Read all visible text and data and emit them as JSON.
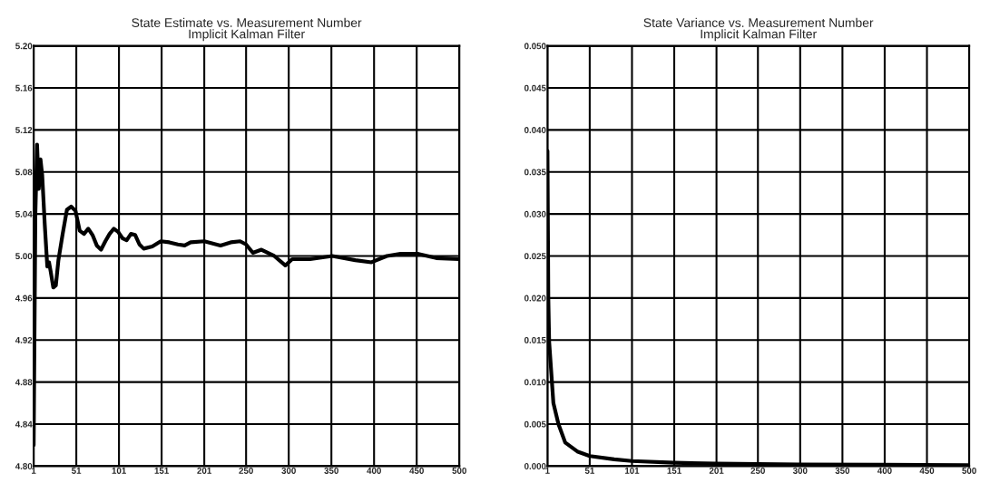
{
  "chart_data": [
    {
      "type": "line",
      "title": "State Estimate vs. Measurement Number\nImplicit Kalman Filter",
      "grid": true,
      "line_style": "solid",
      "x": [
        1,
        3,
        5,
        7,
        9,
        11,
        14,
        17,
        19,
        21,
        24,
        27,
        30,
        35,
        40,
        45,
        50,
        55,
        60,
        65,
        70,
        75,
        80,
        85,
        90,
        95,
        100,
        105,
        110,
        115,
        120,
        125,
        130,
        140,
        150,
        160,
        170,
        178,
        185,
        201,
        220,
        232,
        243,
        250,
        258,
        268,
        283,
        296,
        304,
        325,
        351,
        378,
        397,
        415,
        431,
        452,
        473,
        500
      ],
      "series": [
        {
          "color": "#000000",
          "values": [
            4.82,
            5.04,
            5.106,
            5.064,
            5.092,
            5.077,
            5.03,
            4.99,
            4.994,
            4.985,
            4.97,
            4.972,
            4.996,
            5.021,
            5.044,
            5.047,
            5.043,
            5.024,
            5.021,
            5.026,
            5.02,
            5.01,
            5.006,
            5.014,
            5.021,
            5.026,
            5.023,
            5.017,
            5.015,
            5.021,
            5.02,
            5.011,
            5.007,
            5.009,
            5.014,
            5.013,
            5.011,
            5.01,
            5.013,
            5.014,
            5.01,
            5.013,
            5.014,
            5.011,
            5.003,
            5.006,
            5.0,
            4.991,
            4.997,
            4.997,
            5.0,
            4.996,
            4.994,
            5.0,
            5.002,
            5.002,
            4.998,
            4.997
          ]
        }
      ],
      "xlim": [
        1,
        500
      ],
      "xticks": [
        1,
        51,
        101,
        151,
        201,
        250,
        300,
        350,
        400,
        450,
        500
      ],
      "ylim": [
        4.8,
        5.2
      ],
      "yticks": [
        {
          "value": 4.8,
          "label": "4.80"
        },
        {
          "value": 4.84,
          "label": "4.84"
        },
        {
          "value": 4.88,
          "label": "4.88"
        },
        {
          "value": 4.92,
          "label": "4.92"
        },
        {
          "value": 4.96,
          "label": "4.96"
        },
        {
          "value": 5.0,
          "label": "5.00"
        },
        {
          "value": 5.04,
          "label": "5.04"
        },
        {
          "value": 5.08,
          "label": "5.08"
        },
        {
          "value": 5.12,
          "label": "5.12"
        },
        {
          "value": 5.16,
          "label": "5.16"
        },
        {
          "value": 5.2,
          "label": "5.20"
        }
      ]
    },
    {
      "type": "line",
      "title": "State Variance vs. Measurement Number\nImplicit Kalman Filter",
      "grid": true,
      "line_style": "solid",
      "x": [
        1,
        2,
        3,
        8,
        14,
        22,
        37,
        51,
        80,
        101,
        151,
        201,
        300,
        400,
        500
      ],
      "series": [
        {
          "color": "#000000",
          "values": [
            0.0375,
            0.02,
            0.0148,
            0.0075,
            0.005,
            0.0028,
            0.0017,
            0.0012,
            0.0008,
            0.0006,
            0.0004,
            0.0003,
            0.0002,
            0.00015,
            0.0001
          ]
        }
      ],
      "xlim": [
        1,
        500
      ],
      "xticks": [
        1,
        51,
        101,
        151,
        201,
        250,
        300,
        350,
        400,
        450,
        500
      ],
      "ylim": [
        0.0,
        0.05
      ],
      "yticks": [
        {
          "value": 0.0,
          "label": "0.000"
        },
        {
          "value": 0.005,
          "label": "0.005"
        },
        {
          "value": 0.01,
          "label": "0.010"
        },
        {
          "value": 0.015,
          "label": "0.015"
        },
        {
          "value": 0.02,
          "label": "0.020"
        },
        {
          "value": 0.025,
          "label": "0.025"
        },
        {
          "value": 0.03,
          "label": "0.030"
        },
        {
          "value": 0.035,
          "label": "0.035"
        },
        {
          "value": 0.04,
          "label": "0.040"
        },
        {
          "value": 0.045,
          "label": "0.045"
        },
        {
          "value": 0.05,
          "label": "0.050"
        }
      ]
    }
  ]
}
